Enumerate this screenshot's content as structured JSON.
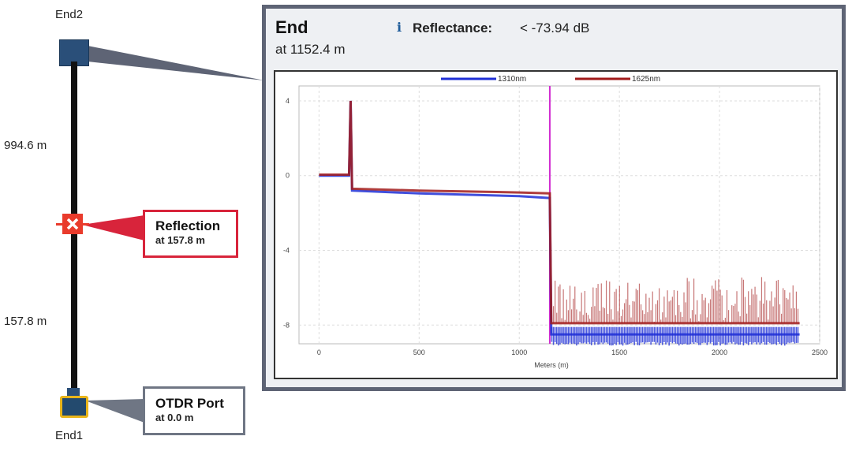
{
  "link_map": {
    "end2_label": "End2",
    "end1_label": "End1",
    "upper_distance": "994.6 m",
    "lower_distance": "157.8 m"
  },
  "callouts": {
    "reflection": {
      "title": "Reflection",
      "subtitle": "at 157.8 m"
    },
    "otdr_port": {
      "title": "OTDR Port",
      "subtitle": "at 0.0 m"
    }
  },
  "detail_panel": {
    "title": "End",
    "subtitle": "at 1152.4 m",
    "info_icon": "i",
    "reflectance_label": "Reflectance:",
    "reflectance_value": "< -73.94 dB"
  },
  "colors": {
    "series_1310": "#1f2fd6",
    "series_1625": "#a11a1a",
    "event_marker": "#d12bd1",
    "reflection_accent": "#d8243b",
    "panel_border": "#5e6475"
  },
  "chart_data": {
    "type": "line",
    "xlabel": "Meters (m)",
    "ylabel": "",
    "xlim": [
      -100,
      2500
    ],
    "ylim": [
      -9.0,
      4.8
    ],
    "x_ticks": [
      0,
      500,
      1000,
      1500,
      2000,
      2500
    ],
    "y_ticks": [
      4,
      0,
      -4,
      -8
    ],
    "grid": true,
    "legend_position": "top",
    "event_marker_x": 1152.4,
    "series": [
      {
        "name": "1310nm",
        "x": [
          0,
          150,
          157.8,
          165,
          500,
          1000,
          1150,
          1152.4,
          1160,
          2400
        ],
        "values": [
          0.0,
          0.0,
          4.0,
          -0.8,
          -0.95,
          -1.1,
          -1.2,
          -1.2,
          -8.5,
          -8.5
        ]
      },
      {
        "name": "1625nm",
        "x": [
          0,
          150,
          157.8,
          165,
          500,
          1000,
          1150,
          1152.4,
          1160,
          2400
        ],
        "values": [
          0.05,
          0.05,
          4.0,
          -0.7,
          -0.8,
          -0.9,
          -0.95,
          -0.95,
          -7.9,
          -7.9
        ]
      }
    ]
  }
}
